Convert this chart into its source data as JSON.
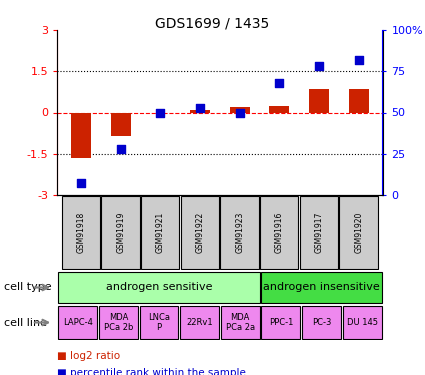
{
  "title": "GDS1699 / 1435",
  "samples": [
    "GSM91918",
    "GSM91919",
    "GSM91921",
    "GSM91922",
    "GSM91923",
    "GSM91916",
    "GSM91917",
    "GSM91920"
  ],
  "log2_ratio": [
    -1.65,
    -0.85,
    0.0,
    0.08,
    0.2,
    0.25,
    0.85,
    0.85
  ],
  "percentile_rank": [
    7,
    28,
    50,
    53,
    50,
    68,
    78,
    82
  ],
  "ylim_left": [
    -3,
    3
  ],
  "ylim_right": [
    0,
    100
  ],
  "yticks_left": [
    -3,
    -1.5,
    0,
    1.5,
    3
  ],
  "yticks_right": [
    0,
    25,
    50,
    75,
    100
  ],
  "ytick_labels_right": [
    "0",
    "25",
    "50",
    "75",
    "100%"
  ],
  "hlines": [
    -1.5,
    0,
    1.5
  ],
  "hline_styles": [
    "dotted",
    "dashed",
    "dotted"
  ],
  "hline_colors": [
    "black",
    "red",
    "black"
  ],
  "cell_type_groups": [
    {
      "label": "androgen sensitive",
      "start": 0,
      "end": 5,
      "color": "#aaffaa"
    },
    {
      "label": "androgen insensitive",
      "start": 5,
      "end": 8,
      "color": "#44dd44"
    }
  ],
  "cell_lines": [
    {
      "label": "LAPC-4",
      "start": 0,
      "end": 1
    },
    {
      "label": "MDA\nPCa 2b",
      "start": 1,
      "end": 2
    },
    {
      "label": "LNCa\nP",
      "start": 2,
      "end": 3
    },
    {
      "label": "22Rv1",
      "start": 3,
      "end": 4
    },
    {
      "label": "MDA\nPCa 2a",
      "start": 4,
      "end": 5
    },
    {
      "label": "PPC-1",
      "start": 5,
      "end": 6
    },
    {
      "label": "PC-3",
      "start": 6,
      "end": 7
    },
    {
      "label": "DU 145",
      "start": 7,
      "end": 8
    }
  ],
  "cell_line_color": "#ee88ee",
  "bar_color_log2": "#cc2200",
  "bar_color_pct": "#0000cc",
  "bar_width": 0.5,
  "sample_box_color": "#cccccc",
  "legend_log2_label": "log2 ratio",
  "legend_pct_label": "percentile rank within the sample"
}
